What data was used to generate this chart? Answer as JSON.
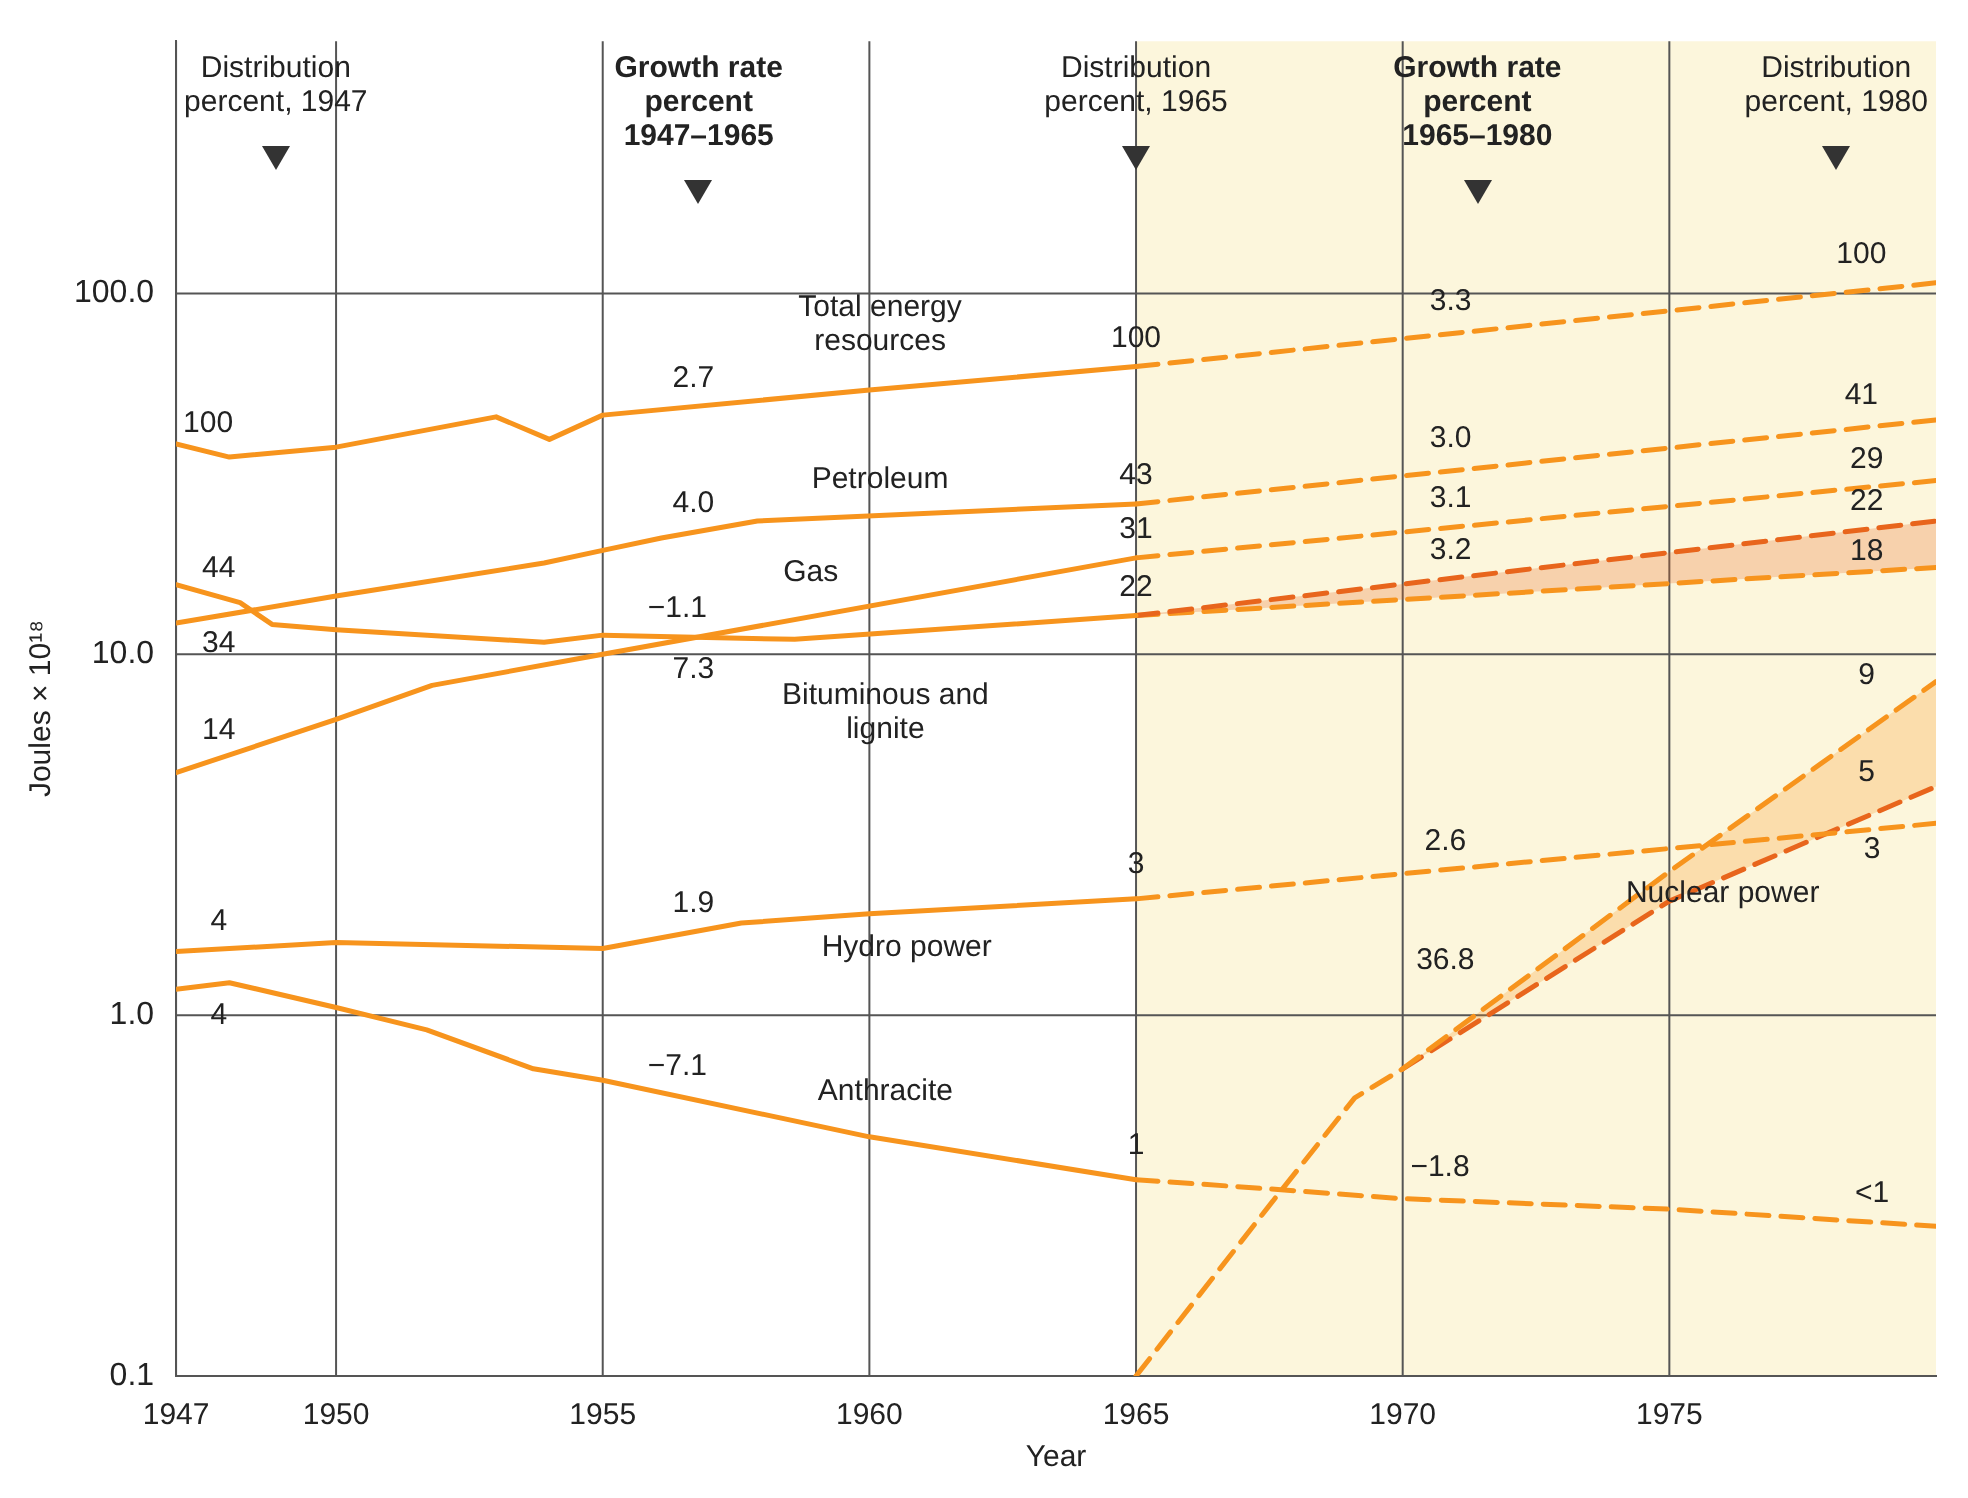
{
  "chart_data": {
    "type": "line",
    "xlabel": "Year",
    "ylabel": "Joules × 10¹⁸",
    "log": "y",
    "grid": true,
    "legend": false,
    "marker": "none",
    "xlim": [
      1947,
      1980
    ],
    "xticks": [
      1947,
      1950,
      1955,
      1960,
      1965,
      1970,
      1975
    ],
    "ylim": [
      0.1,
      500
    ],
    "yticks": [
      0.1,
      {
        "value": 1,
        "label": "1.0"
      },
      {
        "value": 10,
        "label": "10.0"
      },
      {
        "value": 100,
        "label": "100.0"
      }
    ],
    "bands": [
      {
        "axis": "x",
        "from": 1965,
        "to": 1980,
        "color": "#fcf6dc"
      }
    ],
    "series": [
      {
        "name": "Total energy resources",
        "color": "#f7941d",
        "line_style": "solid",
        "x": [
          1947,
          1948,
          1950,
          1953,
          1954,
          1955,
          1960,
          1965
        ],
        "values": [
          38.3,
          35.2,
          37.5,
          45.5,
          39.4,
          46,
          54,
          62.7
        ]
      },
      {
        "color": "#f7941d",
        "line_style": "dashed",
        "x": [
          1965,
          1980
        ],
        "values": [
          62.7,
          107
        ]
      },
      {
        "name": "Petroleum",
        "color": "#f7941d",
        "line_style": "solid",
        "x": [
          1947,
          1950,
          1953.9,
          1955,
          1956.1,
          1957.9,
          1965
        ],
        "values": [
          12.2,
          14.5,
          17.9,
          19.4,
          21,
          23.4,
          26.1
        ]
      },
      {
        "color": "#f7941d",
        "line_style": "dashed",
        "x": [
          1965,
          1980
        ],
        "values": [
          26.1,
          44.6
        ]
      },
      {
        "name": "Gas",
        "color": "#f7941d",
        "line_style": "solid",
        "x": [
          1947,
          1950,
          1951.8,
          1955,
          1965
        ],
        "values": [
          4.7,
          6.6,
          8.2,
          10,
          18.5
        ]
      },
      {
        "color": "#f7941d",
        "line_style": "dashed",
        "x": [
          1965,
          1980
        ],
        "values": [
          18.5,
          30.3
        ]
      },
      {
        "name": "Bituminous and lignite",
        "color": "#f7941d",
        "line_style": "solid",
        "x": [
          1947,
          1948.2,
          1948.8,
          1950,
          1953.9,
          1955,
          1958.6,
          1965
        ],
        "values": [
          15.6,
          13.9,
          12.1,
          11.7,
          10.8,
          11.3,
          11,
          12.8
        ]
      },
      {
        "color": "#e8651c",
        "line_style": "dashed",
        "x": [
          1965,
          1980
        ],
        "values": [
          12.8,
          23.4
        ],
        "lower": [
          12.8,
          17.4
        ],
        "upper": [
          12.8,
          23.4
        ]
      },
      {
        "color": "#f7941d",
        "line_style": "dashed",
        "x": [
          1965,
          1980
        ],
        "values": [
          12.8,
          17.4
        ]
      },
      {
        "name": "Hydro power",
        "color": "#f7941d",
        "line_style": "solid",
        "x": [
          1947,
          1950,
          1955,
          1957.6,
          1960,
          1965
        ],
        "values": [
          1.5,
          1.59,
          1.53,
          1.8,
          1.91,
          2.1
        ]
      },
      {
        "color": "#f7941d",
        "line_style": "dashed",
        "x": [
          1965,
          1980
        ],
        "values": [
          2.1,
          3.4
        ]
      },
      {
        "name": "Anthracite",
        "color": "#f7941d",
        "line_style": "solid",
        "x": [
          1947,
          1948,
          1950,
          1951.7,
          1953.7,
          1955,
          1960,
          1965
        ],
        "values": [
          1.18,
          1.23,
          1.05,
          0.91,
          0.71,
          0.66,
          0.46,
          0.35
        ]
      },
      {
        "color": "#f7941d",
        "line_style": "dashed",
        "x": [
          1965,
          1967.5,
          1970,
          1975,
          1980
        ],
        "values": [
          0.35,
          0.33,
          0.31,
          0.29,
          0.26
        ]
      },
      {
        "name": "Nuclear power",
        "color": "#f7941d",
        "line_style": "dashed",
        "x": [
          1965,
          1967.6,
          1969.1,
          1970,
          1975,
          1980
        ],
        "values": [
          0.1,
          0.31,
          0.59,
          0.71,
          2.5,
          8.4
        ],
        "lower": [
          null,
          null,
          null,
          0.71,
          2.07,
          4.3
        ],
        "upper": [
          null,
          null,
          null,
          0.71,
          2.5,
          8.4
        ]
      },
      {
        "color": "#e8651c",
        "line_style": "dashed",
        "x": [
          1970,
          1975,
          1980
        ],
        "values": [
          0.71,
          2.07,
          4.3
        ]
      }
    ],
    "annotations": [
      "Distribution percent, 1947",
      "Growth rate percent 1947–1965",
      "Distribution percent, 1965",
      "Growth rate percent 1965–1980",
      "Distribution percent, 1980",
      {
        "text": "100",
        "x": 1947.6,
        "y": 36.4
      },
      {
        "text": "44",
        "x": 1947.8,
        "y": 14.4
      },
      {
        "text": "34",
        "x": 1947.8,
        "y": 12.8
      },
      {
        "text": "14",
        "x": 1947.8,
        "y": 5.15
      },
      {
        "text": "4",
        "x": 1947.8,
        "y": 1.52
      },
      {
        "text": "4",
        "x": 1947.8,
        "y": 1.22
      },
      {
        "text": "2.7",
        "x": 1956.7,
        "y": 48.6
      },
      {
        "text": "4.0",
        "x": 1956.7,
        "y": 21.8
      },
      {
        "text": "−1.1",
        "x": 1956.4,
        "y": 11.2
      },
      {
        "text": "7.3",
        "x": 1956.7,
        "y": 11.1
      },
      {
        "text": "1.9",
        "x": 1956.7,
        "y": 1.7
      },
      {
        "text": "−7.1",
        "x": 1956.4,
        "y": 0.6
      },
      {
        "text": "100",
        "x": 1965,
        "y": 62.7
      },
      {
        "text": "43",
        "x": 1965,
        "y": 26.1
      },
      {
        "text": "31",
        "x": 1965,
        "y": 18.5
      },
      {
        "text": "22",
        "x": 1965,
        "y": 12.8
      },
      {
        "text": "3",
        "x": 1965,
        "y": 2.1
      },
      {
        "text": "1",
        "x": 1965,
        "y": 0.35
      },
      {
        "text": "3.3",
        "x": 1970.9,
        "y": 77.4
      },
      {
        "text": "3.0",
        "x": 1970.9,
        "y": 32.2
      },
      {
        "text": "3.1",
        "x": 1970.9,
        "y": 22.5
      },
      {
        "text": "3.2",
        "x": 1970.9,
        "y": 16.2
      },
      {
        "text": "2.6",
        "x": 1970.8,
        "y": 2.53
      },
      {
        "text": "36.8",
        "x": 1970.8,
        "y": 0.87
      },
      {
        "text": "−1.8",
        "x": 1970.7,
        "y": 0.307
      },
      {
        "text": "100",
        "x": 1978.6,
        "y": 102
      },
      {
        "text": "41",
        "x": 1978.6,
        "y": 42.4
      },
      {
        "text": "29",
        "x": 1978.7,
        "y": 29
      },
      {
        "text": "22",
        "x": 1978.7,
        "y": 22.2
      },
      {
        "text": "18",
        "x": 1978.7,
        "y": 16.9
      },
      {
        "text": "9",
        "x": 1978.7,
        "y": 6.1
      },
      {
        "text": "5",
        "x": 1978.7,
        "y": 3.55
      },
      {
        "text": "3",
        "x": 1978.8,
        "y": 3.27
      },
      {
        "text": "<1",
        "x": 1978.8,
        "y": 0.267
      }
    ]
  }
}
